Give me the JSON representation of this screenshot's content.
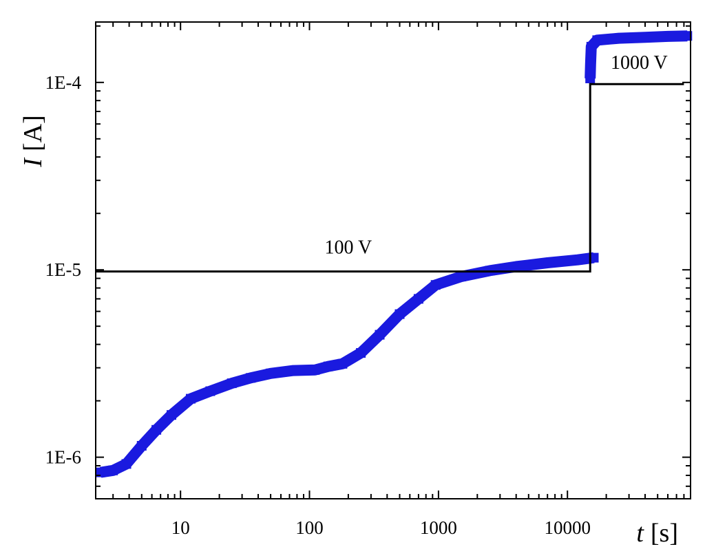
{
  "chart_data": {
    "type": "line",
    "xscale": "log",
    "yscale": "log",
    "xlim": [
      2.2,
      90000
    ],
    "ylim": [
      6e-07,
      0.00021
    ],
    "grid": false,
    "xlabel_symbol": "t",
    "xlabel_unit": "[s]",
    "ylabel_symbol": "I",
    "ylabel_unit": "[A]",
    "x_ticks": [
      {
        "value": 10,
        "label": "10"
      },
      {
        "value": 100,
        "label": "100"
      },
      {
        "value": 1000,
        "label": "1000"
      },
      {
        "value": 10000,
        "label": "10000"
      }
    ],
    "y_ticks": [
      {
        "value": 1e-06,
        "label": "1E-6"
      },
      {
        "value": 1e-05,
        "label": "1E-5"
      },
      {
        "value": 0.0001,
        "label": "1E-4"
      }
    ],
    "series": [
      {
        "color": "#1a1adf",
        "style": "thick-markers",
        "points": [
          [
            2.4,
            8.3e-07
          ],
          [
            3.0,
            8.5e-07
          ],
          [
            3.8,
            9.2e-07
          ],
          [
            5.0,
            1.15e-06
          ],
          [
            6.5,
            1.4e-06
          ],
          [
            8.5,
            1.68e-06
          ],
          [
            12,
            2.05e-06
          ],
          [
            17,
            2.25e-06
          ],
          [
            25,
            2.48e-06
          ],
          [
            35,
            2.65e-06
          ],
          [
            50,
            2.8e-06
          ],
          [
            75,
            2.9e-06
          ],
          [
            110,
            2.92e-06
          ],
          [
            140,
            3.05e-06
          ],
          [
            180,
            3.15e-06
          ],
          [
            250,
            3.6e-06
          ],
          [
            350,
            4.5e-06
          ],
          [
            500,
            5.8e-06
          ],
          [
            700,
            7e-06
          ],
          [
            950,
            8.3e-06
          ],
          [
            1500,
            9.2e-06
          ],
          [
            2500,
            9.9e-06
          ],
          [
            4000,
            1.04e-05
          ],
          [
            7000,
            1.09e-05
          ],
          [
            12000,
            1.13e-05
          ],
          [
            16000,
            1.16e-05
          ]
        ]
      },
      {
        "color": "#1a1adf",
        "style": "thick-markers",
        "points": [
          [
            15000,
            0.000105
          ],
          [
            15100,
            0.000125
          ],
          [
            15300,
            0.000155
          ],
          [
            17000,
            0.000168
          ],
          [
            25000,
            0.000172
          ],
          [
            40000,
            0.000174
          ],
          [
            60000,
            0.000176
          ],
          [
            85000,
            0.000177
          ]
        ]
      },
      {
        "color": "#000000",
        "style": "applied-voltage-step",
        "points": [
          [
            2.2,
            9.8e-06
          ],
          [
            15000,
            9.8e-06
          ],
          [
            15000,
            9.8e-05
          ],
          [
            80000,
            9.8e-05
          ]
        ]
      }
    ],
    "annotations": [
      {
        "text": "100 V",
        "x": 200,
        "y": 1.22e-05
      },
      {
        "text": "1000 V",
        "x": 36000,
        "y": 0.000118
      }
    ]
  }
}
